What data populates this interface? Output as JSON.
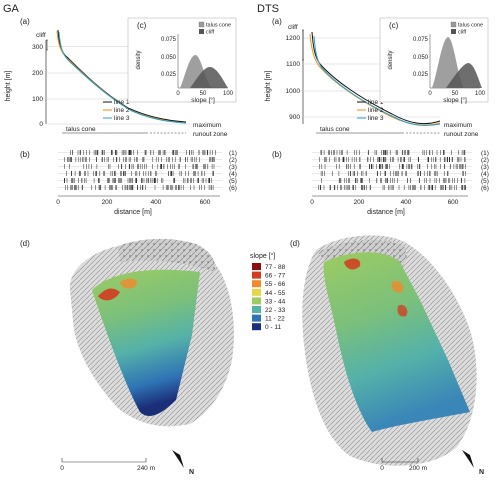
{
  "figure": {
    "sites": [
      {
        "id": "ga",
        "title": "GA",
        "profile": {
          "label": "(a)",
          "ylabel": "height [m]",
          "yticks": [
            "0",
            "100",
            "200",
            "300"
          ],
          "annotations": {
            "cliff": "cliff",
            "talus": "talus cone",
            "max": "maximum",
            "runout": "runout zone"
          },
          "legend": [
            "line 1",
            "line 2",
            "line 3"
          ]
        },
        "inset": {
          "label": "(c)",
          "ylabel": "density",
          "xlabel": "slope [°]",
          "yticks": [
            "0.025",
            "0.050",
            "0.075"
          ],
          "xticks": [
            "0",
            "50",
            "100"
          ],
          "legend": [
            "talus cone",
            "cliff"
          ]
        },
        "rugs": {
          "label": "(b)",
          "rows": [
            "(1)",
            "(2)",
            "(3)",
            "(4)",
            "(5)",
            "(6)"
          ],
          "xticks": [
            "0",
            "200",
            "400",
            "600"
          ],
          "xlabel": "distance [m]"
        },
        "map": {
          "label": "(d)",
          "scale_start": "0",
          "scale_end": "240 m",
          "north": "N"
        }
      },
      {
        "id": "dts",
        "title": "DTS",
        "profile": {
          "label": "(a)",
          "ylabel": "height [m]",
          "yticks": [
            "900",
            "1000",
            "1100",
            "1200"
          ],
          "annotations": {
            "cliff": "cliff",
            "talus": "talus cone",
            "max": "maximum",
            "runout": "runout zone"
          },
          "legend": [
            "line 1",
            "line 2",
            "line 3"
          ]
        },
        "inset": {
          "label": "(c)",
          "ylabel": "density",
          "xlabel": "slope [°]",
          "yticks": [
            "0.025",
            "0.050",
            "0.075"
          ],
          "xticks": [
            "0",
            "50",
            "100"
          ],
          "legend": [
            "talus cone",
            "cliff"
          ]
        },
        "rugs": {
          "label": "(b)",
          "rows": [
            "(1)",
            "(2)",
            "(3)",
            "(4)",
            "(5)",
            "(6)"
          ],
          "xticks": [
            "0",
            "200",
            "400",
            "600"
          ],
          "xlabel": "distance [m]"
        },
        "map": {
          "label": "(d)",
          "scale_start": "0",
          "scale_end": "200 m",
          "north": "N"
        }
      }
    ],
    "slope_legend": {
      "title": "slope [°]",
      "classes": [
        {
          "label": "77 - 88",
          "color": "#8b0d0d"
        },
        {
          "label": "66 - 77",
          "color": "#d43a1e"
        },
        {
          "label": "55 - 66",
          "color": "#f08a2c"
        },
        {
          "label": "44 - 55",
          "color": "#e8d64a"
        },
        {
          "label": "33 - 44",
          "color": "#9ccc62"
        },
        {
          "label": "22 - 33",
          "color": "#55b2a8"
        },
        {
          "label": "11 - 22",
          "color": "#2f73b5"
        },
        {
          "label": "0 - 11",
          "color": "#1b2f79"
        }
      ]
    },
    "line_colors": {
      "line1": "#111111",
      "line2": "#f28c1a",
      "line3": "#29a3c9"
    },
    "density_colors": {
      "talus": "#9a9a9a",
      "cliff": "#555555"
    }
  }
}
